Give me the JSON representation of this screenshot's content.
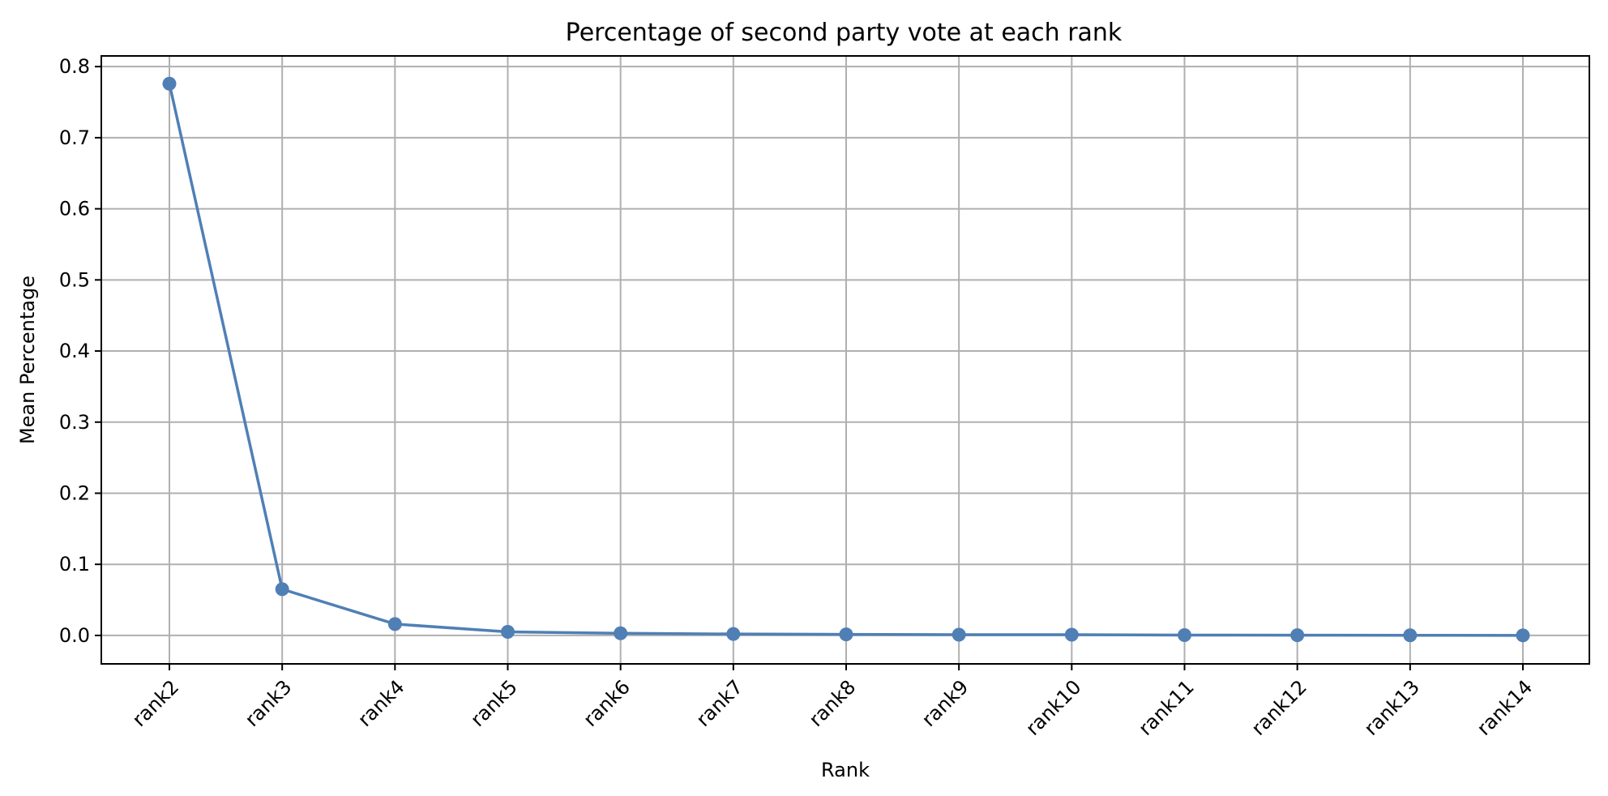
{
  "chart_data": {
    "type": "line",
    "title": "Percentage of second party vote at each rank",
    "xlabel": "Rank",
    "ylabel": "Mean Percentage",
    "categories": [
      "rank2",
      "rank3",
      "rank4",
      "rank5",
      "rank6",
      "rank7",
      "rank8",
      "rank9",
      "rank10",
      "rank11",
      "rank12",
      "rank13",
      "rank14"
    ],
    "series": [
      {
        "name": "Mean Percentage",
        "values": [
          0.776,
          0.065,
          0.016,
          0.005,
          0.003,
          0.002,
          0.0015,
          0.001,
          0.001,
          0.0005,
          0.0003,
          0.0002,
          0.0001
        ]
      }
    ],
    "ylim": [
      -0.04,
      0.815
    ],
    "yticks": [
      0.0,
      0.1,
      0.2,
      0.3,
      0.4,
      0.5,
      0.6,
      0.7,
      0.8
    ],
    "ytick_labels": [
      "0.0",
      "0.1",
      "0.2",
      "0.3",
      "0.4",
      "0.5",
      "0.6",
      "0.7",
      "0.8"
    ],
    "grid": true,
    "colors": {
      "line": "#4f7fb5",
      "marker": "#4f7fb5"
    },
    "marker": "circle"
  }
}
